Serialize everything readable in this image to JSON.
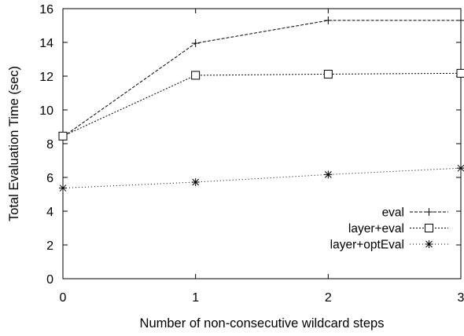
{
  "chart_data": {
    "type": "line",
    "xlabel": "Number of non-consecutive wildcard steps",
    "ylabel": "Total Evaluation Time (sec)",
    "x": [
      0,
      1,
      2,
      3
    ],
    "xlim": [
      0,
      3
    ],
    "ylim": [
      0,
      16
    ],
    "xticks": [
      "0",
      "1",
      "2",
      "3"
    ],
    "yticks": [
      "0",
      "2",
      "4",
      "6",
      "8",
      "10",
      "12",
      "14",
      "16"
    ],
    "grid": false,
    "legend_position": "bottom-right",
    "series": [
      {
        "name": "eval",
        "values": [
          8.4,
          13.95,
          15.3,
          15.3
        ],
        "marker": "plus",
        "dash": "4,2"
      },
      {
        "name": "layer+eval",
        "values": [
          8.45,
          12.05,
          12.12,
          12.17
        ],
        "marker": "square",
        "dash": "2,2"
      },
      {
        "name": "layer+optEval",
        "values": [
          5.37,
          5.72,
          6.17,
          6.55
        ],
        "marker": "star",
        "dash": "1,3"
      }
    ]
  }
}
